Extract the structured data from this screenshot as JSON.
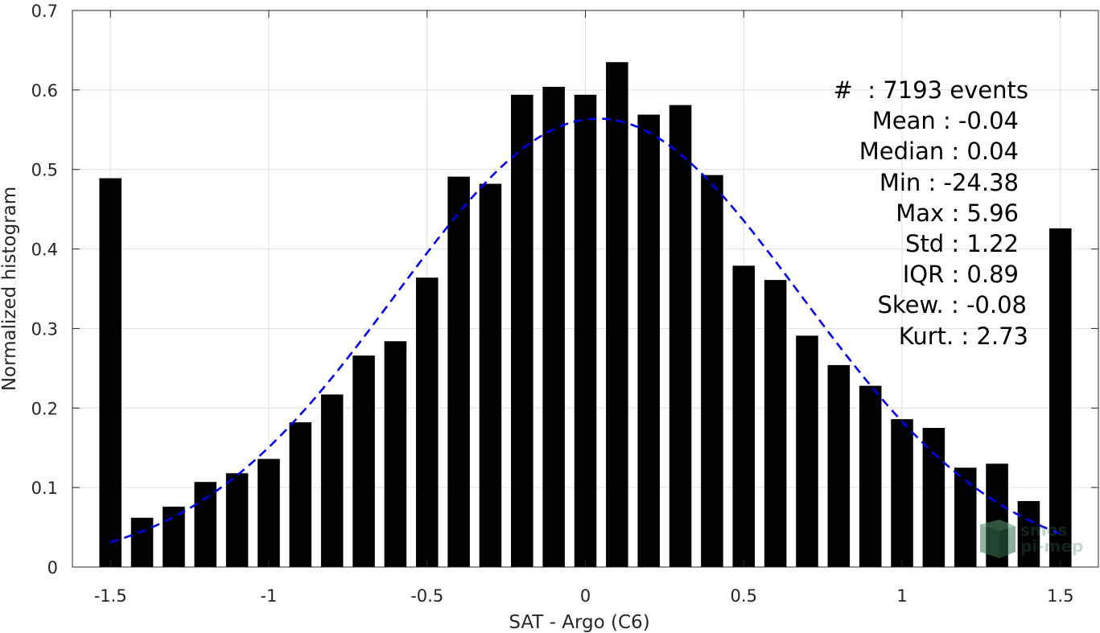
{
  "chart_data": {
    "type": "bar",
    "title": "",
    "xlabel": "SAT - Argo (C6)",
    "ylabel": "Normalized histogram",
    "xlim": [
      -1.62,
      1.62
    ],
    "ylim": [
      0,
      0.7
    ],
    "grid": true,
    "xticks": [
      -1.5,
      -1,
      -0.5,
      0,
      0.5,
      1,
      1.5
    ],
    "xtick_labels": [
      "-1.5",
      "-1",
      "-0.5",
      "0",
      "0.5",
      "1",
      "1.5"
    ],
    "yticks": [
      0,
      0.1,
      0.2,
      0.3,
      0.4,
      0.5,
      0.6,
      0.7
    ],
    "ytick_labels": [
      "0",
      "0.1",
      "0.2",
      "0.3",
      "0.4",
      "0.5",
      "0.6",
      "0.7"
    ],
    "bar_width": 0.07,
    "bar_color": "#000000",
    "series": [
      {
        "x": [
          -1.5,
          -1.4,
          -1.3,
          -1.2,
          -1.1,
          -1.0,
          -0.9,
          -0.8,
          -0.7,
          -0.6,
          -0.5,
          -0.4,
          -0.3,
          -0.2,
          -0.1,
          0.0,
          0.1,
          0.2,
          0.3,
          0.4,
          0.5,
          0.6,
          0.7,
          0.8,
          0.9,
          1.0,
          1.1,
          1.2,
          1.3,
          1.4,
          1.5
        ],
        "values": [
          0.489,
          0.062,
          0.076,
          0.107,
          0.118,
          0.136,
          0.182,
          0.217,
          0.266,
          0.284,
          0.364,
          0.491,
          0.482,
          0.594,
          0.604,
          0.594,
          0.635,
          0.569,
          0.581,
          0.493,
          0.379,
          0.361,
          0.291,
          0.254,
          0.228,
          0.186,
          0.175,
          0.125,
          0.13,
          0.083,
          0.426
        ]
      }
    ],
    "fit_curve": {
      "style": "dashed",
      "color": "#0000ee",
      "x_range": [
        -1.5,
        1.5
      ],
      "mean": 0.04,
      "peak": 0.564,
      "sigma": 0.64
    },
    "annotations": {
      "stats": [
        "#  : 7193 events",
        "Mean : -0.04",
        "Median : 0.04",
        "Min : -24.38",
        "Max : 5.96",
        "Std : 1.22",
        "IQR : 0.89",
        "Skew. : -0.08",
        "Kurt. : 2.73"
      ]
    }
  },
  "watermark": {
    "line1": "smos",
    "line2": "pi-mep",
    "color": "#3d7a57"
  }
}
